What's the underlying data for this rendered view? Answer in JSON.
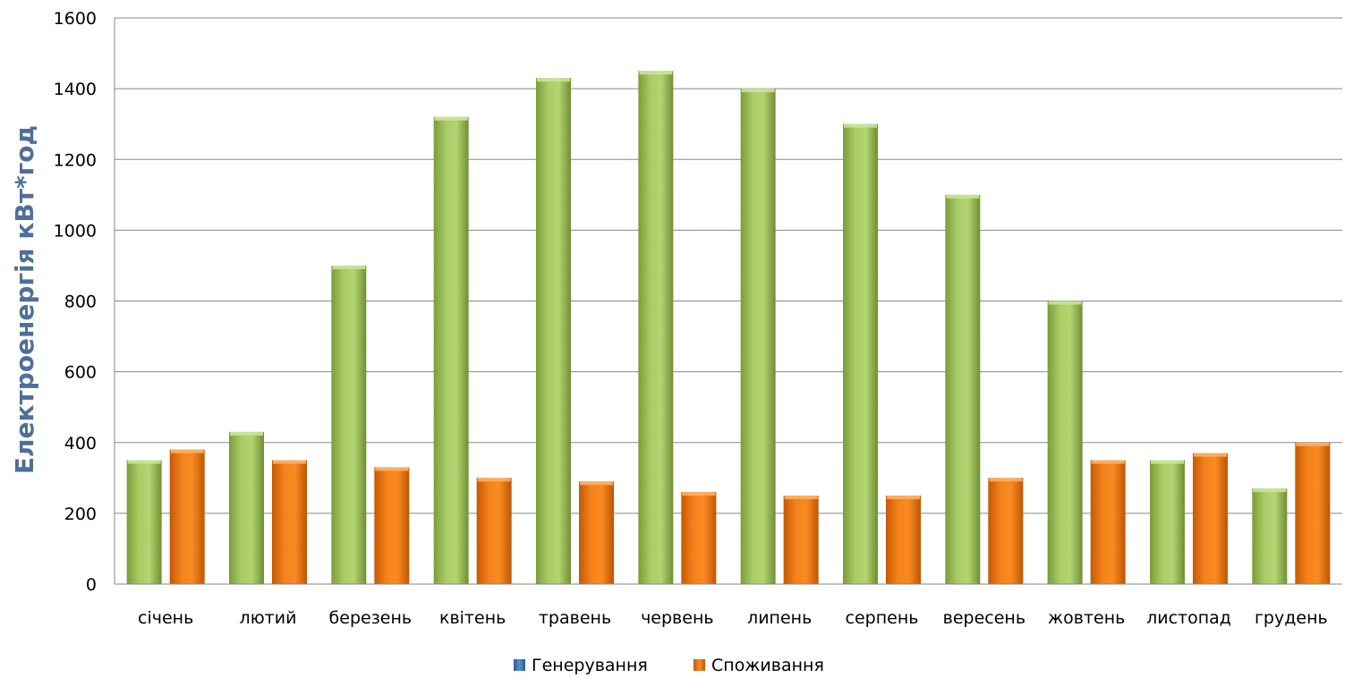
{
  "chart_data": {
    "type": "bar",
    "title": "",
    "xlabel": "",
    "ylabel": "Електроенергія кВт*год",
    "ylim": [
      0,
      1600
    ],
    "yticks": [
      0,
      200,
      400,
      600,
      800,
      1000,
      1200,
      1400,
      1600
    ],
    "grid": true,
    "legend_position": "bottom",
    "categories": [
      "січень",
      "лютий",
      "березень",
      "квітень",
      "травень",
      "червень",
      "липень",
      "серпень",
      "вересень",
      "жовтень",
      "листопад",
      "грудень"
    ],
    "series": [
      {
        "name": "Генерування",
        "legend_color": "#4f81bd",
        "color": "#9bbb59",
        "values": [
          350,
          430,
          900,
          1320,
          1430,
          1450,
          1400,
          1300,
          1100,
          800,
          350,
          270
        ]
      },
      {
        "name": "Споживання",
        "legend_color": "#f79646",
        "color": "#f07a10",
        "values": [
          380,
          350,
          330,
          300,
          290,
          260,
          250,
          250,
          300,
          350,
          370,
          400
        ]
      }
    ],
    "colors": {
      "axis_title": "#4f6f9a",
      "gridline": "#888888",
      "axis_line": "#888888"
    }
  }
}
